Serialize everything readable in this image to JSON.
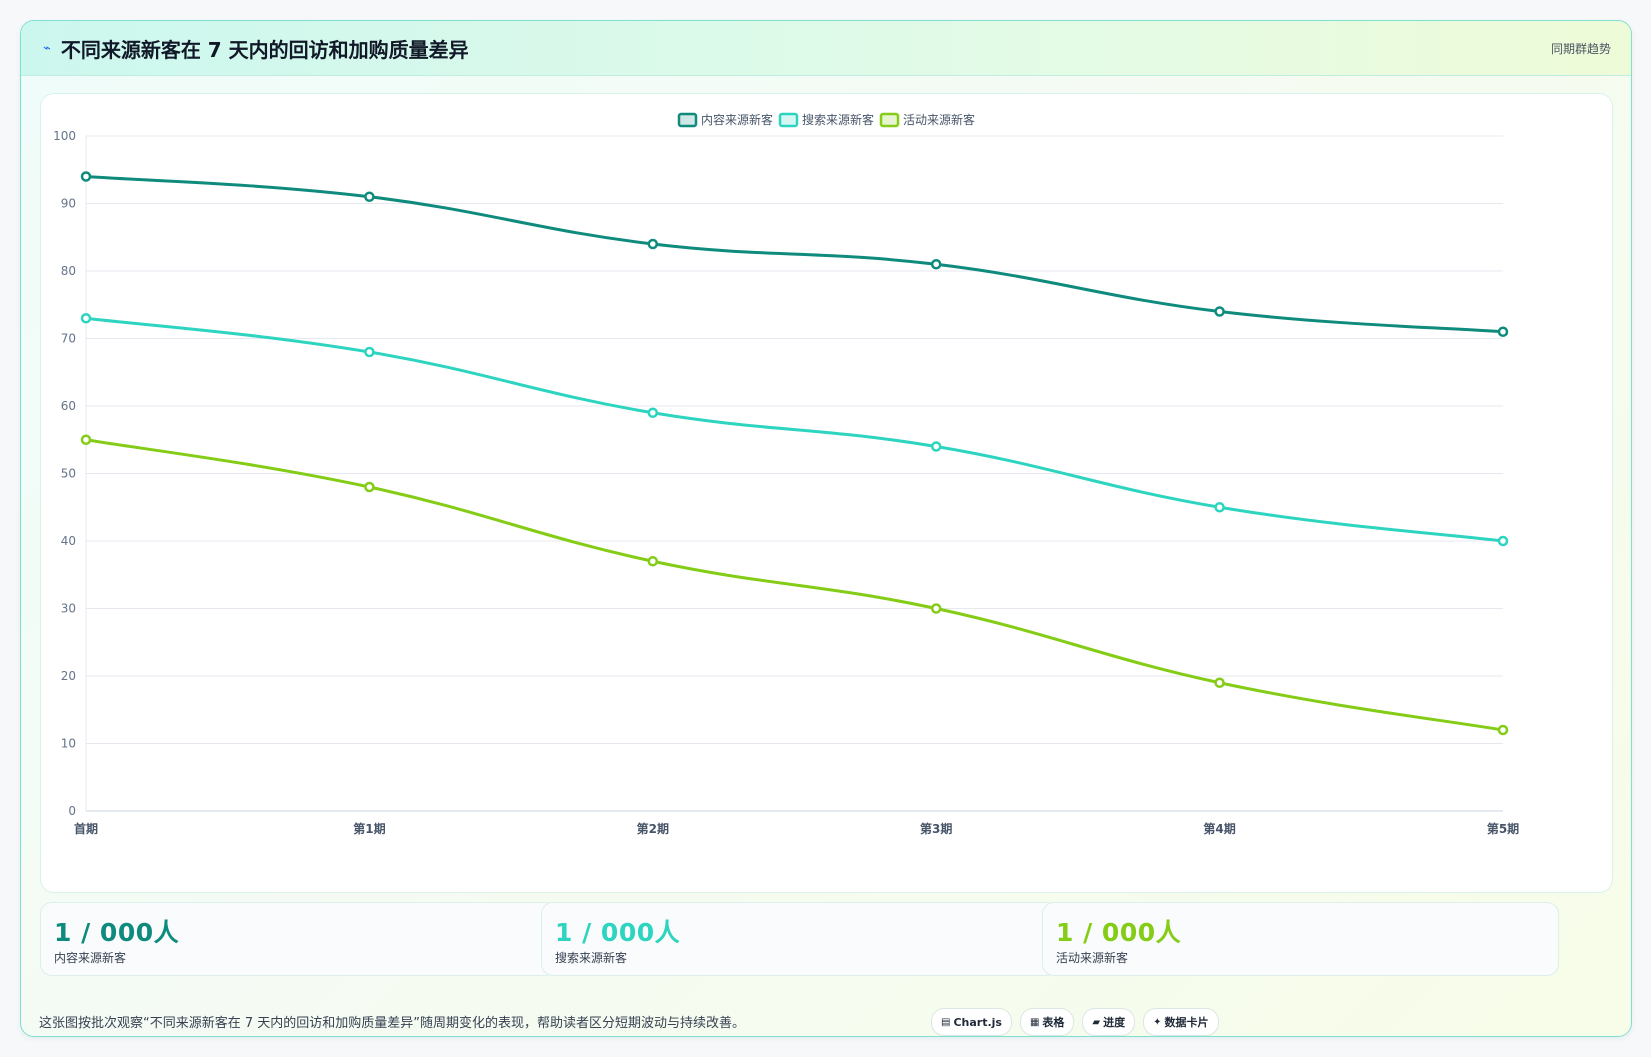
{
  "header": {
    "icon": "⌁",
    "title": "不同来源新客在 7 天内的回访和加购质量差异",
    "tag": "同期群趋势"
  },
  "chart_data": {
    "type": "line",
    "categories": [
      "首期",
      "第1期",
      "第2期",
      "第3期",
      "第4期",
      "第5期"
    ],
    "series": [
      {
        "name": "内容来源新客",
        "values": [
          94,
          91,
          84,
          81,
          74,
          71
        ],
        "color": "#0f8b7d"
      },
      {
        "name": "搜索来源新客",
        "values": [
          73,
          68,
          59,
          54,
          45,
          40
        ],
        "color": "#2dd4bf"
      },
      {
        "name": "活动来源新客",
        "values": [
          55,
          48,
          37,
          30,
          19,
          12
        ],
        "color": "#84cc16"
      }
    ],
    "ylim": [
      0,
      100
    ],
    "yticks": [
      0,
      10,
      20,
      30,
      40,
      50,
      60,
      70,
      80,
      90,
      100
    ],
    "grid": true,
    "legend": "top-center",
    "smooth": true
  },
  "stats": [
    {
      "value": "1 / 000人",
      "label": "内容来源新客",
      "color": "#0f8b7d"
    },
    {
      "value": "1 / 000人",
      "label": "搜索来源新客",
      "color": "#2dd4bf"
    },
    {
      "value": "1 / 000人",
      "label": "活动来源新客",
      "color": "#84cc16"
    }
  ],
  "footer": {
    "note": "这张图按批次观察“不同来源新客在 7 天内的回访和加购质量差异”随周期变化的表现，帮助读者区分短期波动与持续改善。",
    "chips": [
      {
        "icon": "▤",
        "label": "Chart.js"
      },
      {
        "icon": "▦",
        "label": "表格"
      },
      {
        "icon": "▰",
        "label": "进度"
      },
      {
        "icon": "✦",
        "label": "数据卡片"
      }
    ]
  }
}
